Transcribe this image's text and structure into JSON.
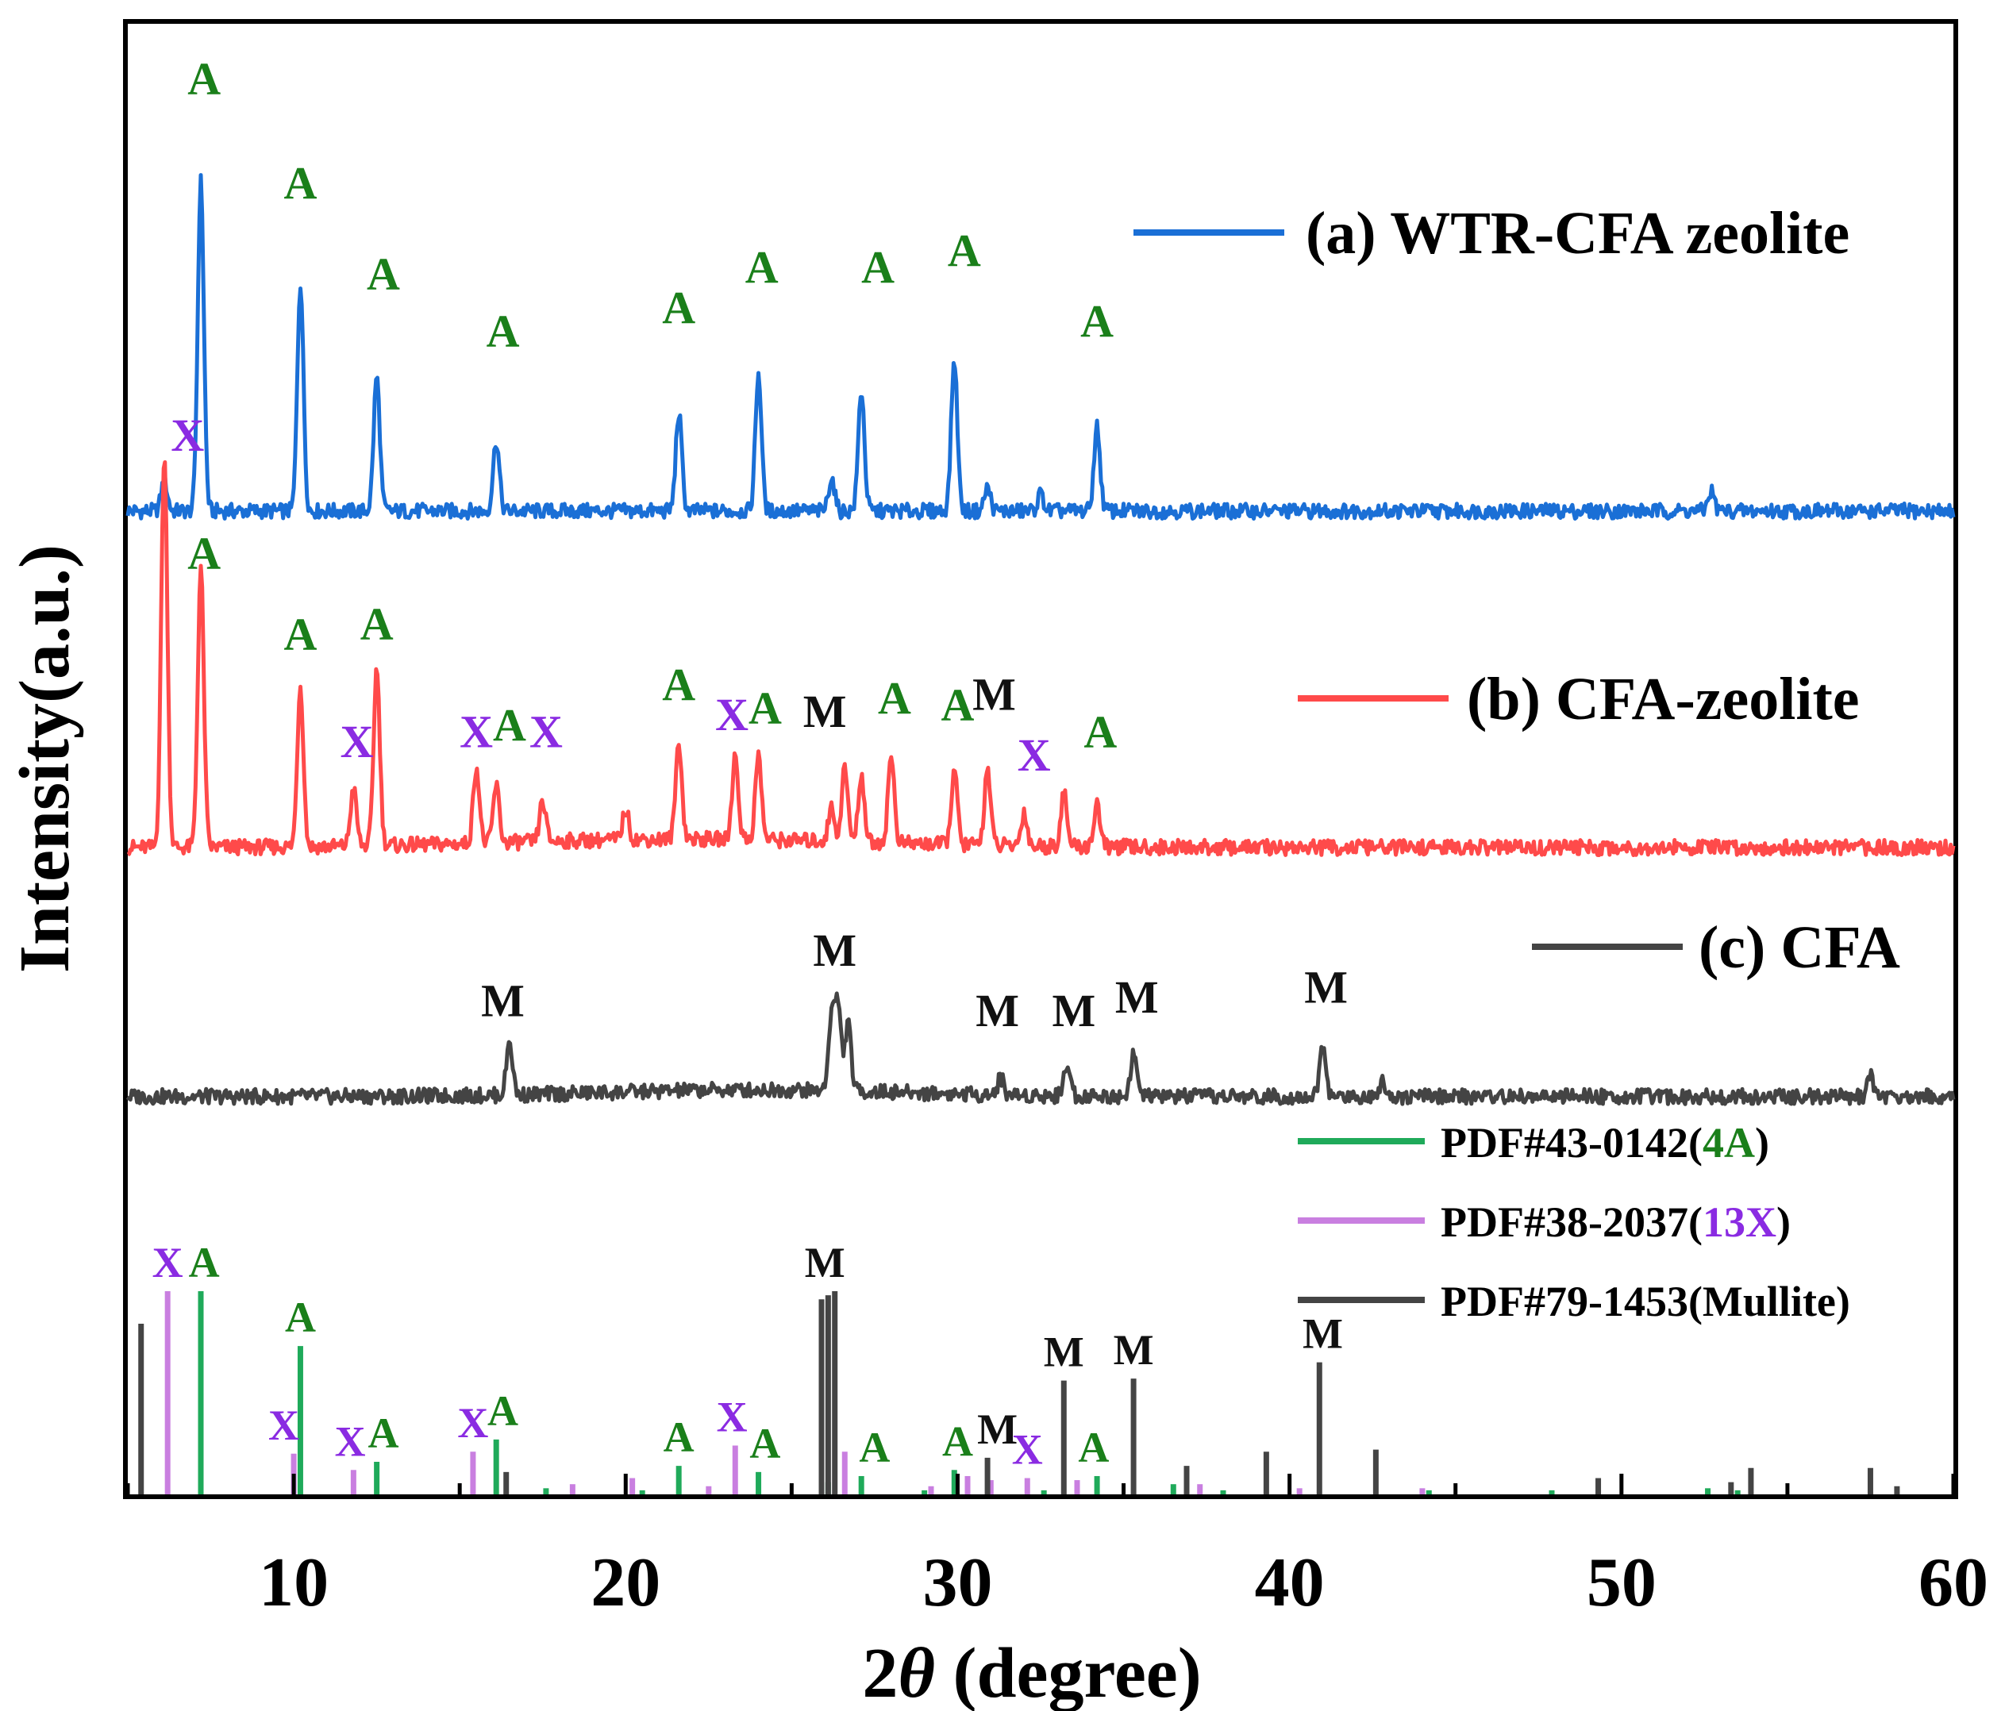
{
  "chart_data": {
    "type": "line",
    "title": "",
    "xlabel_prefix": "2",
    "xlabel_symbol": "θ",
    "xlabel_suffix": " (degree)",
    "ylabel": "Intensity(a.u.)",
    "xlim": [
      5,
      60
    ],
    "xticks": [
      10,
      20,
      30,
      40,
      50,
      60
    ],
    "colors": {
      "A": "#1a7f1a",
      "X": "#8a2be2",
      "M": "#111111",
      "wtr": "#1a6fd6",
      "cfa_zeolite": "#ff4a4a",
      "cfa": "#444444",
      "pdf_4a": "#1faa5a",
      "pdf_13x": "#c97fe0",
      "pdf_mullite": "#444444"
    },
    "series": [
      {
        "key": "wtr",
        "name": "(a) WTR-CFA zeolite",
        "baseline": 1.0,
        "peaks": [
          [
            6.1,
            0.09
          ],
          [
            7.2,
            0.98
          ],
          [
            10.2,
            0.68
          ],
          [
            12.5,
            0.4
          ],
          [
            16.1,
            0.21
          ],
          [
            21.6,
            0.29
          ],
          [
            24.0,
            0.41
          ],
          [
            26.2,
            0.1
          ],
          [
            27.1,
            0.36
          ],
          [
            29.9,
            0.45
          ],
          [
            30.9,
            0.07
          ],
          [
            32.5,
            0.05
          ],
          [
            34.2,
            0.25
          ],
          [
            52.7,
            0.06
          ]
        ],
        "labels": [
          {
            "x": 7.3,
            "h": 1.22,
            "t": "A"
          },
          {
            "x": 10.2,
            "h": 0.91,
            "t": "A"
          },
          {
            "x": 12.7,
            "h": 0.64,
            "t": "A"
          },
          {
            "x": 16.3,
            "h": 0.47,
            "t": "A"
          },
          {
            "x": 21.6,
            "h": 0.54,
            "t": "A"
          },
          {
            "x": 24.1,
            "h": 0.66,
            "t": "A"
          },
          {
            "x": 27.6,
            "h": 0.66,
            "t": "A"
          },
          {
            "x": 30.2,
            "h": 0.71,
            "t": "A"
          },
          {
            "x": 34.2,
            "h": 0.5,
            "t": "A"
          }
        ]
      },
      {
        "key": "cfa_zeolite",
        "name": "(b) CFA-zeolite",
        "baseline": 0.0,
        "peaks": [
          [
            6.1,
            1.17
          ],
          [
            7.2,
            0.83
          ],
          [
            10.2,
            0.48
          ],
          [
            11.8,
            0.17
          ],
          [
            12.5,
            0.53
          ],
          [
            15.5,
            0.23
          ],
          [
            16.1,
            0.17
          ],
          [
            17.5,
            0.12
          ],
          [
            20.0,
            0.09
          ],
          [
            21.6,
            0.29
          ],
          [
            23.3,
            0.25
          ],
          [
            24.0,
            0.25
          ],
          [
            26.2,
            0.1
          ],
          [
            26.6,
            0.22
          ],
          [
            27.1,
            0.2
          ],
          [
            28.0,
            0.26
          ],
          [
            29.9,
            0.22
          ],
          [
            30.9,
            0.23
          ],
          [
            32.0,
            0.1
          ],
          [
            33.2,
            0.16
          ],
          [
            34.2,
            0.13
          ]
        ],
        "labels": [
          {
            "x": 6.8,
            "h": 1.16,
            "t": "X",
            "c": "X"
          },
          {
            "x": 7.3,
            "h": 0.81,
            "t": "A"
          },
          {
            "x": 10.2,
            "h": 0.57,
            "t": "A"
          },
          {
            "x": 11.9,
            "h": 0.25,
            "t": "X",
            "c": "X"
          },
          {
            "x": 12.5,
            "h": 0.6,
            "t": "A"
          },
          {
            "x": 15.5,
            "h": 0.28,
            "t": "X",
            "c": "X"
          },
          {
            "x": 16.5,
            "h": 0.3,
            "t": "A"
          },
          {
            "x": 17.6,
            "h": 0.28,
            "t": "X",
            "c": "X"
          },
          {
            "x": 21.6,
            "h": 0.42,
            "t": "A"
          },
          {
            "x": 23.2,
            "h": 0.33,
            "t": "X",
            "c": "X"
          },
          {
            "x": 24.2,
            "h": 0.35,
            "t": "A"
          },
          {
            "x": 26.0,
            "h": 0.34,
            "t": "M",
            "c": "M"
          },
          {
            "x": 28.1,
            "h": 0.38,
            "t": "A"
          },
          {
            "x": 30.0,
            "h": 0.36,
            "t": "A"
          },
          {
            "x": 31.1,
            "h": 0.39,
            "t": "M",
            "c": "M"
          },
          {
            "x": 32.3,
            "h": 0.21,
            "t": "X",
            "c": "X"
          },
          {
            "x": 34.3,
            "h": 0.28,
            "t": "A"
          }
        ]
      },
      {
        "key": "cfa",
        "name": "(c) CFA",
        "baseline": -0.74,
        "peaks": [
          [
            16.5,
            0.16
          ],
          [
            26.2,
            0.22
          ],
          [
            26.4,
            0.25
          ],
          [
            26.7,
            0.2
          ],
          [
            31.3,
            0.05
          ],
          [
            33.3,
            0.1
          ],
          [
            35.3,
            0.13
          ],
          [
            41.0,
            0.15
          ],
          [
            42.8,
            0.05
          ],
          [
            57.5,
            0.06
          ]
        ],
        "labels": [
          {
            "x": 16.3,
            "h": 0.22,
            "t": "M",
            "c": "M"
          },
          {
            "x": 26.3,
            "h": 0.37,
            "t": "M",
            "c": "M"
          },
          {
            "x": 31.2,
            "h": 0.19,
            "t": "M",
            "c": "M"
          },
          {
            "x": 33.5,
            "h": 0.19,
            "t": "M",
            "c": "M"
          },
          {
            "x": 35.4,
            "h": 0.23,
            "t": "M",
            "c": "M"
          },
          {
            "x": 41.1,
            "h": 0.26,
            "t": "M",
            "c": "M"
          }
        ]
      }
    ],
    "references": [
      {
        "key": "pdf_4a",
        "name_prefix": "PDF#43-0142(",
        "name_highlight": "4A",
        "name_highlight_color": "A",
        "name_suffix": ")",
        "sticks": [
          [
            7.2,
            100
          ],
          [
            10.2,
            73
          ],
          [
            12.5,
            16
          ],
          [
            16.1,
            27
          ],
          [
            17.6,
            3
          ],
          [
            20.5,
            2
          ],
          [
            21.6,
            14
          ],
          [
            24.0,
            11
          ],
          [
            26.1,
            6
          ],
          [
            27.1,
            9
          ],
          [
            29.0,
            2
          ],
          [
            29.9,
            12
          ],
          [
            32.6,
            2
          ],
          [
            34.2,
            9
          ],
          [
            36.5,
            5
          ],
          [
            38.0,
            2
          ],
          [
            44.2,
            2
          ],
          [
            47.9,
            2
          ],
          [
            52.6,
            3
          ],
          [
            53.5,
            2
          ]
        ]
      },
      {
        "key": "pdf_13x",
        "name_prefix": "PDF#38-2037(",
        "name_highlight": "13X",
        "name_highlight_color": "X",
        "name_suffix": ")",
        "sticks": [
          [
            6.2,
            100
          ],
          [
            10.0,
            20
          ],
          [
            11.8,
            12
          ],
          [
            15.4,
            21
          ],
          [
            18.4,
            5
          ],
          [
            20.2,
            8
          ],
          [
            22.5,
            4
          ],
          [
            23.3,
            24
          ],
          [
            26.6,
            21
          ],
          [
            29.2,
            4
          ],
          [
            30.3,
            9
          ],
          [
            31.0,
            7
          ],
          [
            32.1,
            8
          ],
          [
            33.6,
            7
          ],
          [
            37.3,
            5
          ],
          [
            40.3,
            3
          ],
          [
            44.0,
            3
          ]
        ]
      },
      {
        "key": "pdf_mullite",
        "name_prefix": "PDF#79-1453(Mullite)",
        "name_highlight": "",
        "name_highlight_color": "M",
        "name_suffix": "",
        "sticks": [
          [
            5.4,
            84
          ],
          [
            16.4,
            11
          ],
          [
            25.9,
            96
          ],
          [
            26.1,
            98
          ],
          [
            26.3,
            100
          ],
          [
            30.9,
            18
          ],
          [
            33.2,
            56
          ],
          [
            35.3,
            57
          ],
          [
            36.9,
            14
          ],
          [
            39.3,
            21
          ],
          [
            40.9,
            65
          ],
          [
            42.6,
            22
          ],
          [
            49.3,
            8
          ],
          [
            53.3,
            6
          ],
          [
            53.9,
            13
          ],
          [
            57.5,
            13
          ],
          [
            58.3,
            4
          ]
        ]
      }
    ],
    "reference_labels": [
      {
        "x": 6.2,
        "h": 100,
        "t": "X",
        "c": "X"
      },
      {
        "x": 7.3,
        "h": 100,
        "t": "A"
      },
      {
        "x": 10.2,
        "h": 73,
        "t": "A"
      },
      {
        "x": 9.7,
        "h": 20,
        "t": "X",
        "c": "X"
      },
      {
        "x": 11.7,
        "h": 12,
        "t": "X",
        "c": "X"
      },
      {
        "x": 12.7,
        "h": 16,
        "t": "A"
      },
      {
        "x": 15.4,
        "h": 21,
        "t": "X",
        "c": "X"
      },
      {
        "x": 16.3,
        "h": 27,
        "t": "A"
      },
      {
        "x": 21.6,
        "h": 14,
        "t": "A"
      },
      {
        "x": 23.2,
        "h": 24,
        "t": "X",
        "c": "X"
      },
      {
        "x": 24.2,
        "h": 11,
        "t": "A"
      },
      {
        "x": 26.0,
        "h": 100,
        "t": "M",
        "c": "M"
      },
      {
        "x": 27.5,
        "h": 9,
        "t": "A"
      },
      {
        "x": 30.0,
        "h": 12,
        "t": "A"
      },
      {
        "x": 31.2,
        "h": 18,
        "t": "M",
        "c": "M"
      },
      {
        "x": 32.1,
        "h": 8,
        "t": "X",
        "c": "X"
      },
      {
        "x": 33.2,
        "h": 56,
        "t": "M",
        "c": "M"
      },
      {
        "x": 34.1,
        "h": 9,
        "t": "A"
      },
      {
        "x": 35.3,
        "h": 57,
        "t": "M",
        "c": "M"
      },
      {
        "x": 41.0,
        "h": 65,
        "t": "M",
        "c": "M"
      }
    ]
  }
}
